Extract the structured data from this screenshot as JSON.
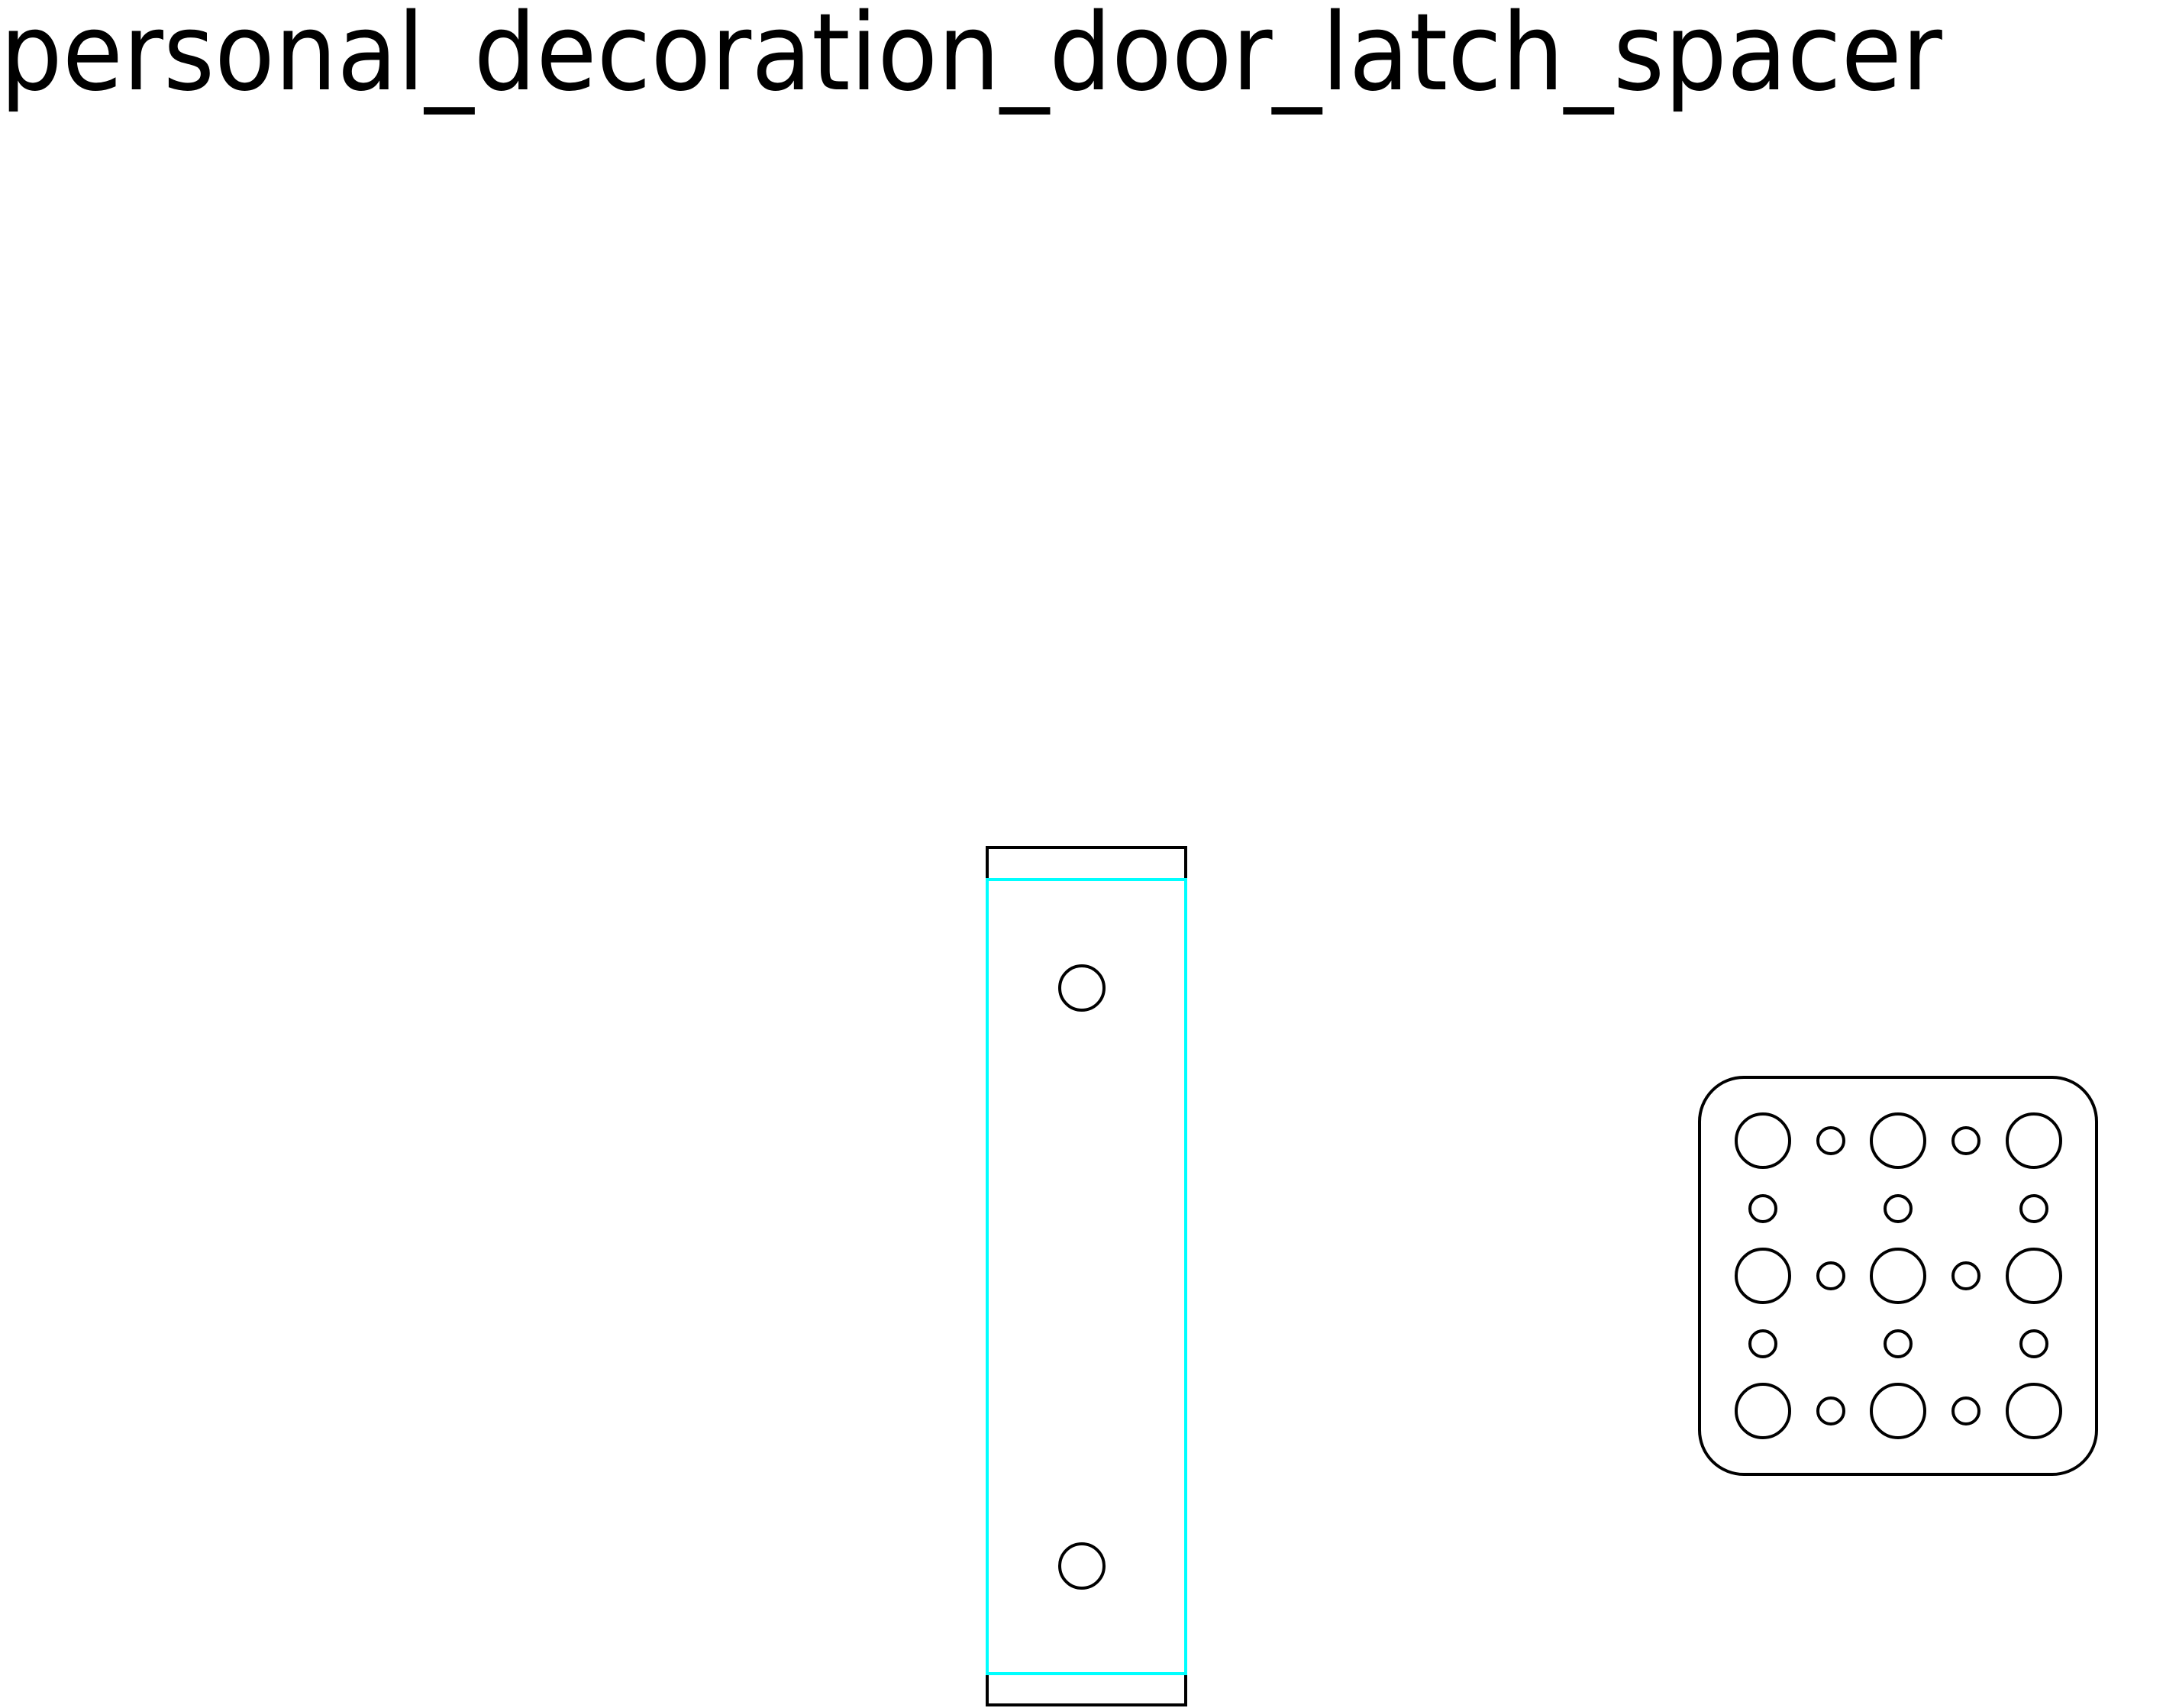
{
  "drawing": {
    "title": "personal_decoration_door_latch_spacer",
    "colors": {
      "outline": "#000000",
      "highlight": "#00ffff",
      "background": "#ffffff"
    }
  }
}
